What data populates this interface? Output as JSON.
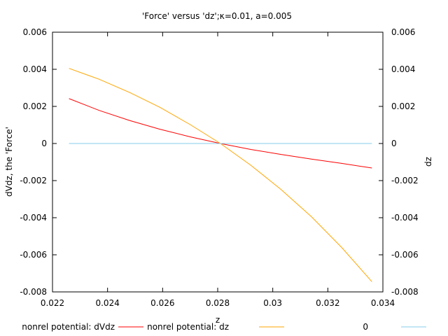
{
  "chart_data": {
    "type": "line",
    "title": "'Force' versus 'dz';κ=0.01, a=0.005",
    "xlabel": "z",
    "ylabel": "dVdz, the 'Force'",
    "y2label": "dz",
    "xlim": [
      0.022,
      0.034
    ],
    "ylim": [
      -0.008,
      0.006
    ],
    "y2lim": [
      -0.008,
      0.006
    ],
    "xticks": [
      "0.022",
      "0.024",
      "0.026",
      "0.028",
      "0.03",
      "0.032",
      "0.034"
    ],
    "yticks": [
      "0.006",
      "0.004",
      "0.002",
      "0",
      "-0.002",
      "-0.004",
      "-0.006",
      "-0.008"
    ],
    "y2ticks": [
      "0.006",
      "0.004",
      "0.002",
      "0",
      "-0.002",
      "-0.004",
      "-0.006",
      "-0.008"
    ],
    "grid": false,
    "legend_position": "bottom",
    "series": [
      {
        "name": "nonrel potential: dVdz",
        "color": "#ff0000",
        "x": [
          0.0226,
          0.0237,
          0.0248,
          0.0259,
          0.027,
          0.0281,
          0.0292,
          0.0303,
          0.0314,
          0.0325,
          0.0336
        ],
        "y": [
          0.00242,
          0.00178,
          0.00124,
          0.00077,
          0.00036,
          0.0,
          -0.00032,
          -0.00059,
          -0.00084,
          -0.00107,
          -0.00132
        ]
      },
      {
        "name": "nonrel potential: dz",
        "color": "#ffa500",
        "x": [
          0.0226,
          0.0237,
          0.0248,
          0.0259,
          0.027,
          0.0281,
          0.0292,
          0.0303,
          0.0314,
          0.0325,
          0.0336
        ],
        "y": [
          0.00405,
          0.00346,
          0.00275,
          0.00195,
          0.00102,
          0.0,
          -0.00117,
          -0.00248,
          -0.00394,
          -0.0056,
          -0.00745
        ]
      },
      {
        "name": "0",
        "color": "#87ceeb",
        "x": [
          0.0226,
          0.0336
        ],
        "y": [
          0,
          0
        ]
      }
    ]
  }
}
